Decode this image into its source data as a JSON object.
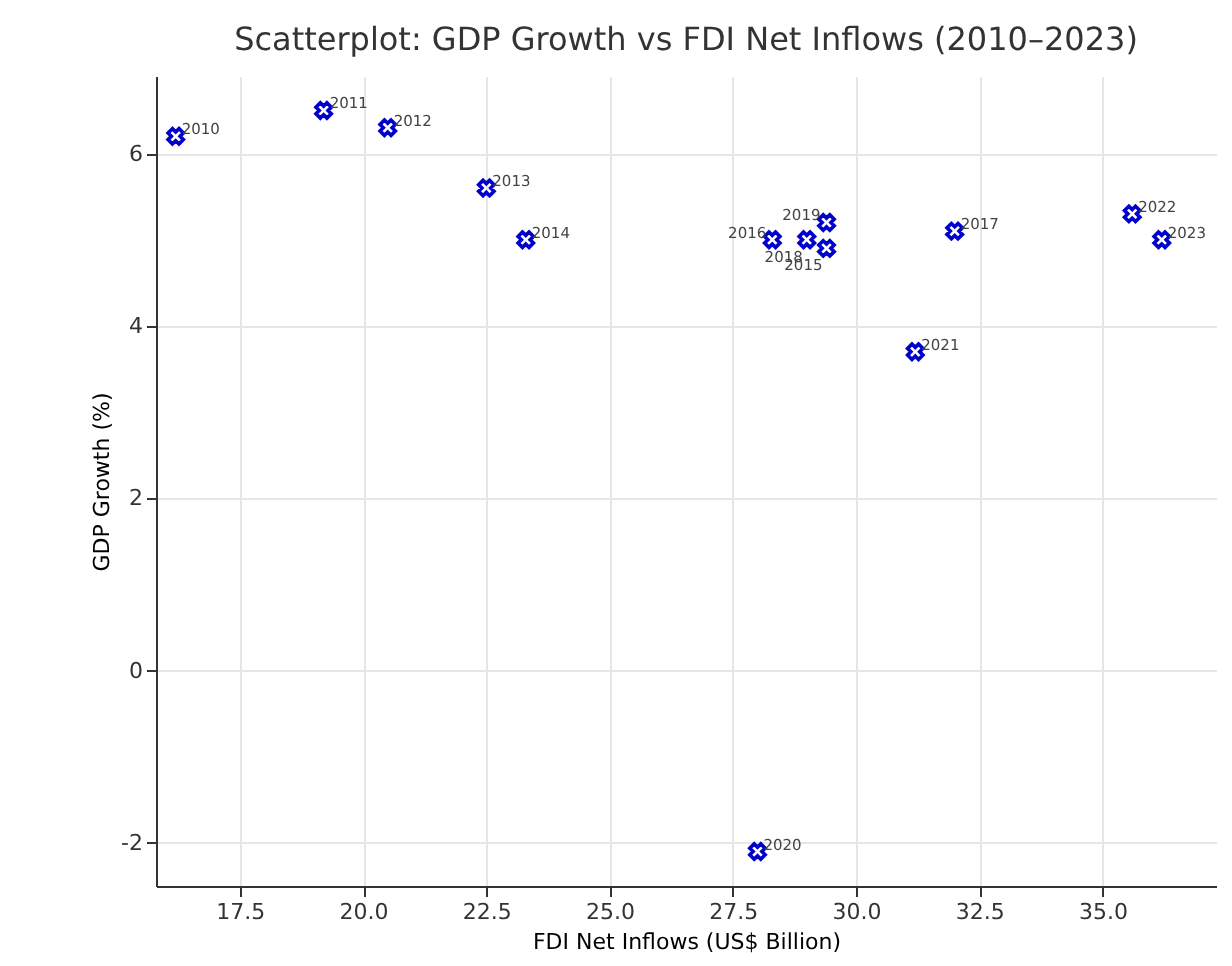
{
  "chart_data": {
    "type": "scatter",
    "title": "Scatterplot: GDP Growth vs FDI Net Inflows (2010–2023)",
    "xlabel": "FDI Net Inflows (US$ Billion)",
    "ylabel": "GDP Growth (%)",
    "x": [
      16.2,
      19.2,
      20.5,
      22.5,
      23.3,
      29.4,
      28.3,
      32.0,
      29.0,
      29.4,
      28.0,
      31.2,
      35.6,
      36.2
    ],
    "series": [
      {
        "color": "#0000cc",
        "values": [
          6.2,
          6.5,
          6.3,
          5.6,
          5.0,
          4.9,
          5.0,
          5.1,
          5.0,
          5.2,
          -2.1,
          3.7,
          5.3,
          5.0
        ]
      }
    ],
    "annotations": [
      {
        "text": "2010",
        "x": 16.2,
        "y": 6.2
      },
      {
        "text": "2011",
        "x": 19.2,
        "y": 6.5
      },
      {
        "text": "2012",
        "x": 20.5,
        "y": 6.3
      },
      {
        "text": "2013",
        "x": 22.5,
        "y": 5.6
      },
      {
        "text": "2014",
        "x": 23.3,
        "y": 5.0
      },
      {
        "text": "2015",
        "x": 29.4,
        "y": 4.9
      },
      {
        "text": "2016",
        "x": 28.3,
        "y": 5.0
      },
      {
        "text": "2017",
        "x": 32.0,
        "y": 5.1
      },
      {
        "text": "2018",
        "x": 29.0,
        "y": 5.0
      },
      {
        "text": "2019",
        "x": 29.4,
        "y": 5.2
      },
      {
        "text": "2020",
        "x": 28.0,
        "y": -2.1
      },
      {
        "text": "2021",
        "x": 31.2,
        "y": 3.7
      },
      {
        "text": "2022",
        "x": 35.6,
        "y": 5.3
      },
      {
        "text": "2023",
        "x": 36.2,
        "y": 5.0
      }
    ],
    "xlim": [
      15.8,
      37.3
    ],
    "ylim": [
      -2.5,
      6.9
    ],
    "xticks": [
      17.5,
      {
        "value": 20,
        "label": "20.0"
      },
      22.5,
      {
        "value": 25,
        "label": "25.0"
      },
      27.5,
      {
        "value": 30,
        "label": "30.0"
      },
      32.5,
      {
        "value": 35,
        "label": "35.0"
      }
    ],
    "yticks": [
      -2,
      0,
      2,
      4,
      6
    ],
    "grid": true,
    "marker": "cross"
  }
}
